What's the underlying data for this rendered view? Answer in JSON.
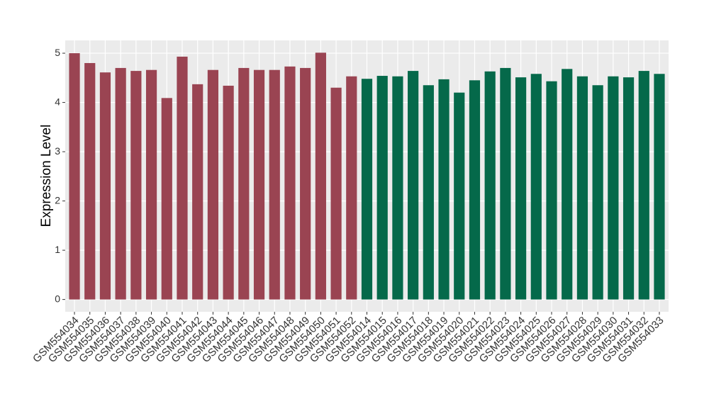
{
  "chart_data": {
    "type": "bar",
    "y_label": "Expression Level",
    "categories": [
      "GSM554034",
      "GSM554035",
      "GSM554036",
      "GSM554037",
      "GSM554038",
      "GSM554039",
      "GSM554040",
      "GSM554041",
      "GSM554042",
      "GSM554043",
      "GSM554044",
      "GSM554045",
      "GSM554046",
      "GSM554047",
      "GSM554048",
      "GSM554049",
      "GSM554050",
      "GSM554051",
      "GSM554052",
      "GSM554014",
      "GSM554015",
      "GSM554016",
      "GSM554017",
      "GSM554018",
      "GSM554019",
      "GSM554020",
      "GSM554021",
      "GSM554022",
      "GSM554023",
      "GSM554024",
      "GSM554025",
      "GSM554026",
      "GSM554027",
      "GSM554028",
      "GSM554029",
      "GSM554030",
      "GSM554031",
      "GSM554032",
      "GSM554033"
    ],
    "values": [
      5.0,
      4.8,
      4.61,
      4.7,
      4.64,
      4.66,
      4.09,
      4.93,
      4.37,
      4.66,
      4.34,
      4.7,
      4.66,
      4.66,
      4.73,
      4.7,
      5.01,
      4.3,
      4.53,
      4.48,
      4.54,
      4.53,
      4.64,
      4.35,
      4.47,
      4.2,
      4.45,
      4.63,
      4.7,
      4.51,
      4.58,
      4.43,
      4.68,
      4.53,
      4.35,
      4.53,
      4.51,
      4.64,
      4.58
    ],
    "colors": [
      "#9a4452",
      "#9a4452",
      "#9a4452",
      "#9a4452",
      "#9a4452",
      "#9a4452",
      "#9a4452",
      "#9a4452",
      "#9a4452",
      "#9a4452",
      "#9a4452",
      "#9a4452",
      "#9a4452",
      "#9a4452",
      "#9a4452",
      "#9a4452",
      "#9a4452",
      "#9a4452",
      "#9a4452",
      "#05694a",
      "#05694a",
      "#05694a",
      "#05694a",
      "#05694a",
      "#05694a",
      "#05694a",
      "#05694a",
      "#05694a",
      "#05694a",
      "#05694a",
      "#05694a",
      "#05694a",
      "#05694a",
      "#05694a",
      "#05694a",
      "#05694a",
      "#05694a",
      "#05694a",
      "#05694a"
    ],
    "ylim": [
      -0.25,
      5.26
    ],
    "yticks": [
      0,
      1,
      2,
      3,
      4,
      5
    ],
    "grid": true
  }
}
